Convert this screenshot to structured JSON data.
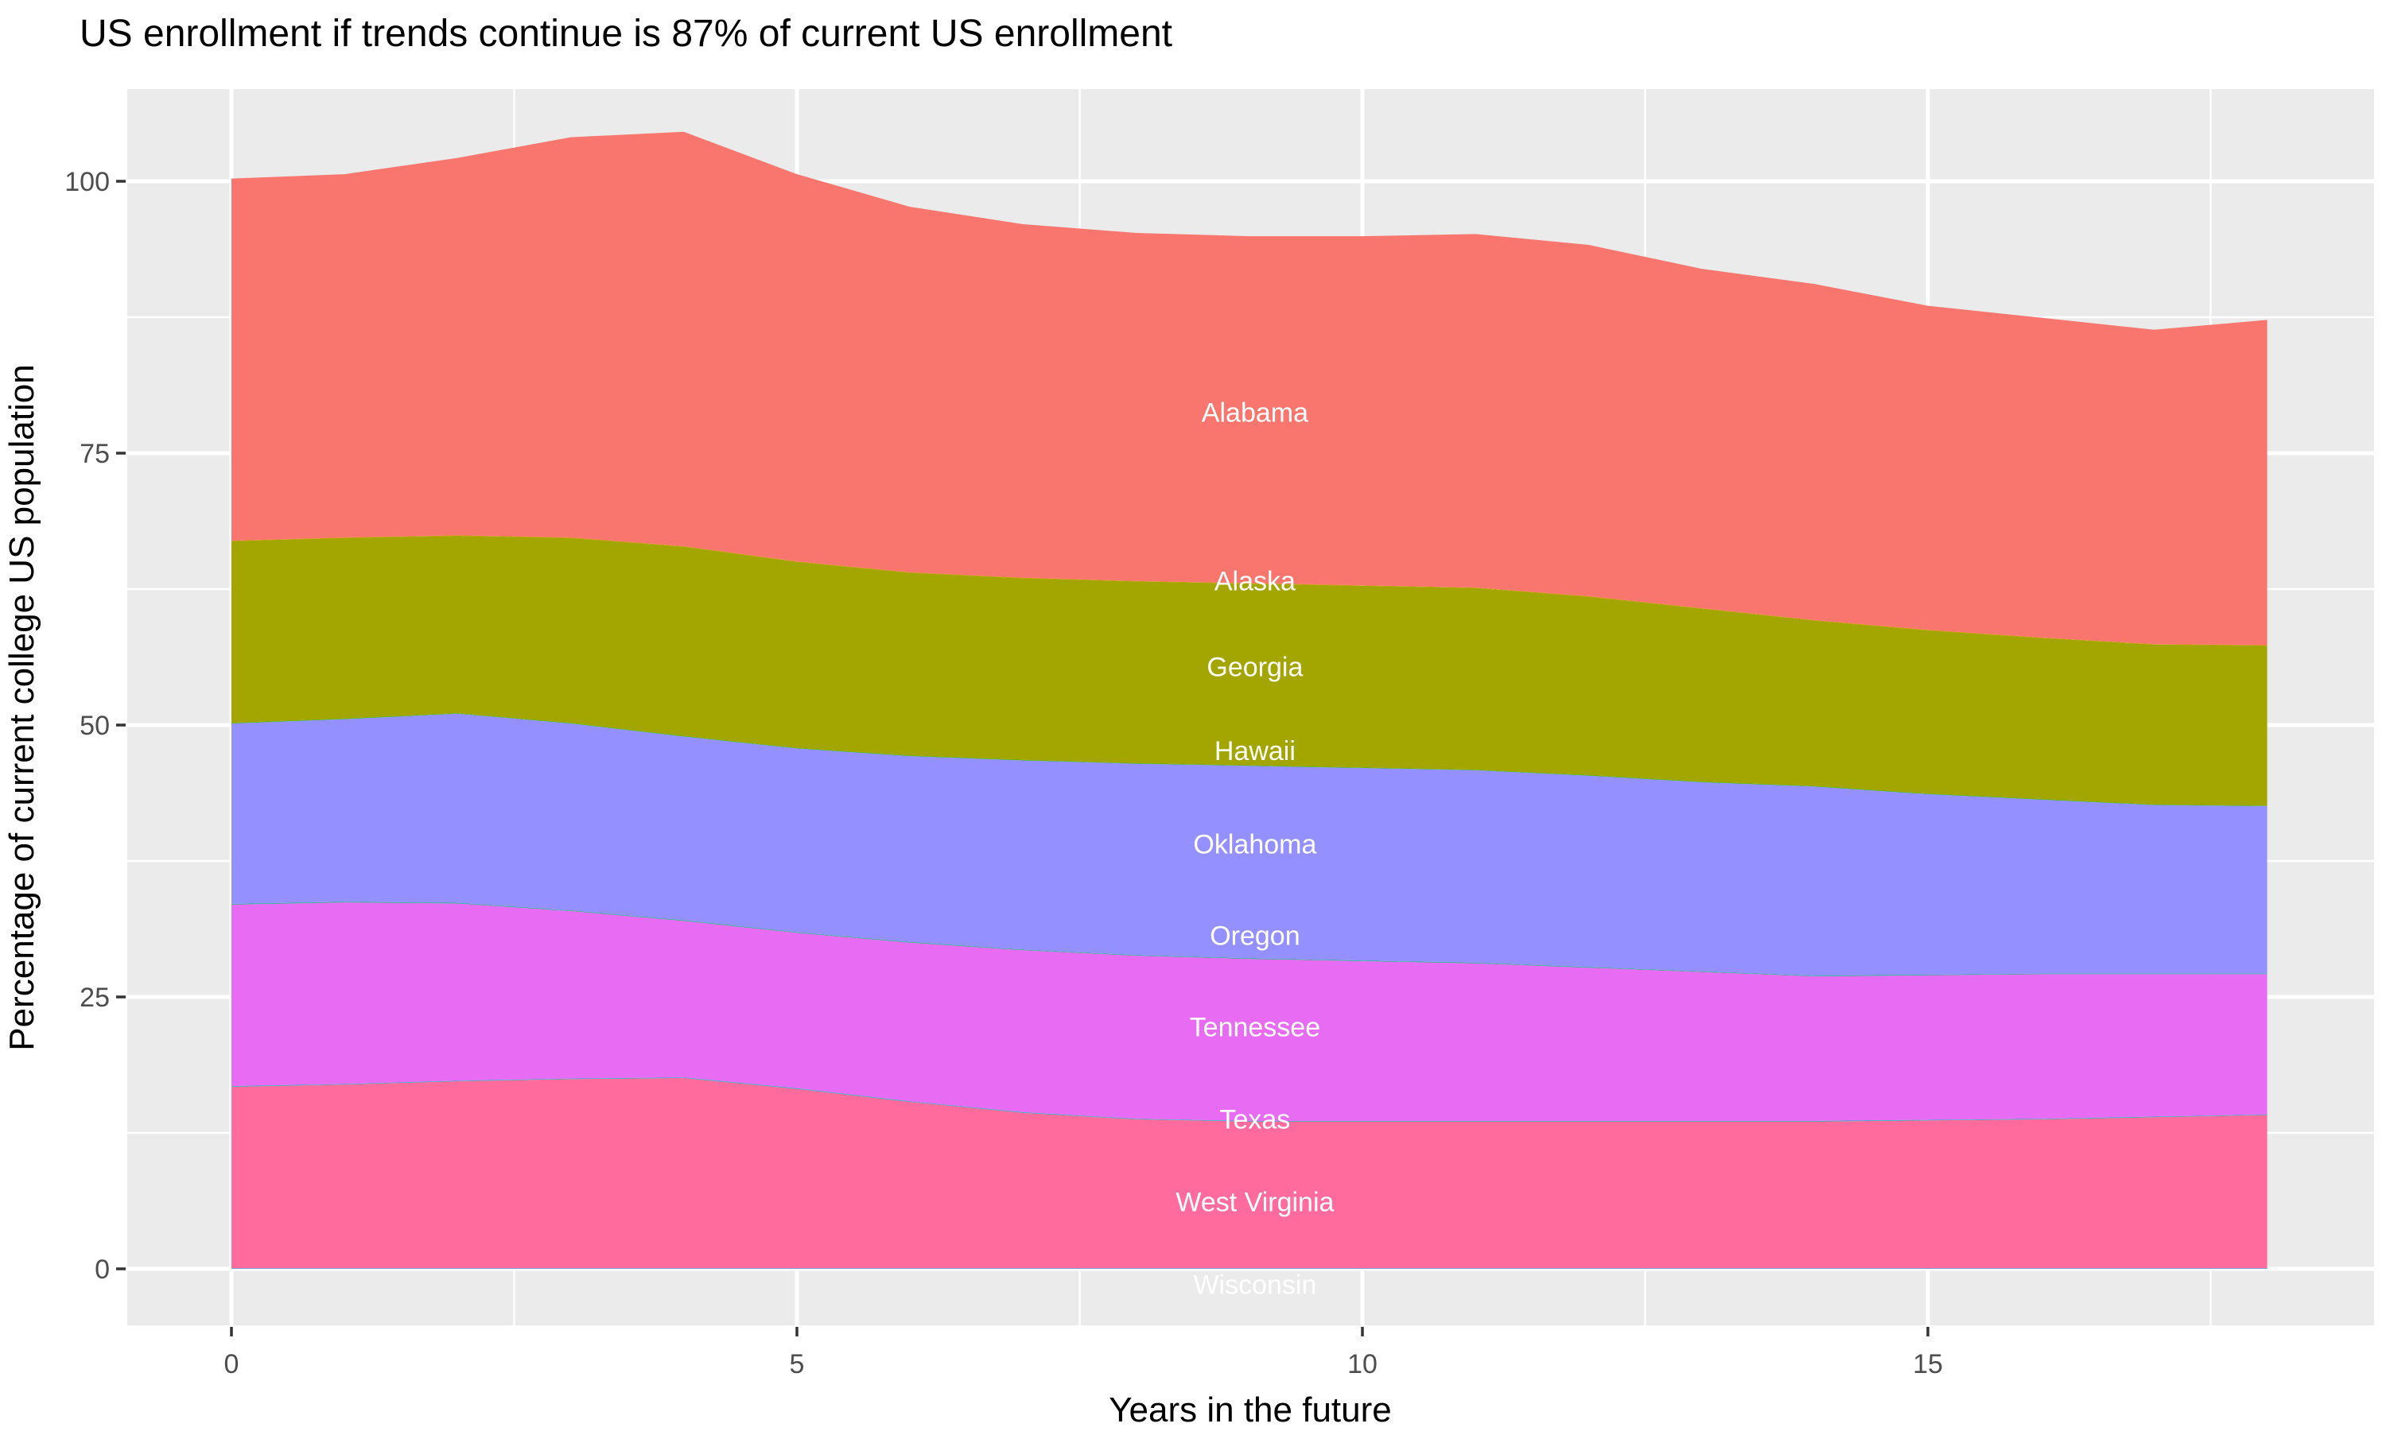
{
  "title": "US enrollment if trends continue is 87% of current US enrollment",
  "x_axis": {
    "label": "Years in the future",
    "major_ticks": [
      0,
      5,
      10,
      15
    ],
    "minor_gridlines": [
      2.5,
      7.5,
      12.5,
      17.5
    ]
  },
  "y_axis": {
    "label": "Percentage of current college US population",
    "major_ticks": [
      0,
      25,
      50,
      75,
      100
    ],
    "minor_gridlines": [
      12.5,
      37.5,
      62.5,
      87.5
    ]
  },
  "colors": {
    "panel_background": "#EBEBEB",
    "gridline": "#FFFFFF",
    "tick_mark": "#333333",
    "tick_label": "#4D4D4D",
    "title_text": "#000000",
    "state_label_text": "#FFFFFF"
  },
  "chart_data": {
    "type": "area",
    "stacked": true,
    "title": "US enrollment if trends continue is 87% of current US enrollment",
    "xlabel": "Years in the future",
    "ylabel": "Percentage of current college US population",
    "xlim": [
      -0.92,
      18.94
    ],
    "ylim": [
      -5.2,
      108.5
    ],
    "grid": true,
    "legend": "none (labels drawn inside bands)",
    "label_x": 9.05,
    "x": [
      0,
      1,
      2,
      3,
      4,
      5,
      6,
      7,
      8,
      9,
      10,
      11,
      12,
      13,
      14,
      15,
      16,
      17,
      18
    ],
    "total_at_year0": 100.0,
    "total_at_end": 87.0,
    "series": [
      {
        "name": "Wisconsin",
        "color": "#00B0F6",
        "label_y": -1.5,
        "values": [
          0.05,
          0.05,
          0.05,
          0.05,
          0.05,
          0.05,
          0.05,
          0.05,
          0.05,
          0.05,
          0.05,
          0.05,
          0.05,
          0.05,
          0.05,
          0.05,
          0.05,
          0.05,
          0.05
        ]
      },
      {
        "name": "West Virginia",
        "color": "#FF6B9C",
        "label_y": 6.1,
        "values": [
          16.7,
          16.9,
          17.2,
          17.4,
          17.5,
          16.5,
          15.3,
          14.3,
          13.7,
          13.5,
          13.5,
          13.5,
          13.5,
          13.5,
          13.5,
          13.6,
          13.7,
          13.9,
          14.1
        ]
      },
      {
        "name": "Texas",
        "color": "#00BFC4",
        "label_y": 13.7,
        "values": [
          0.05,
          0.05,
          0.05,
          0.05,
          0.05,
          0.05,
          0.05,
          0.05,
          0.05,
          0.05,
          0.05,
          0.05,
          0.05,
          0.05,
          0.05,
          0.05,
          0.05,
          0.05,
          0.05
        ]
      },
      {
        "name": "Tennessee",
        "color": "#E76BF3",
        "label_y": 22.2,
        "values": [
          16.7,
          16.7,
          16.3,
          15.4,
          14.4,
          14.3,
          14.6,
          14.9,
          15.0,
          14.9,
          14.7,
          14.5,
          14.1,
          13.7,
          13.3,
          13.3,
          13.3,
          13.1,
          12.9
        ]
      },
      {
        "name": "Oregon",
        "color": "#00BF7D",
        "label_y": 30.6,
        "values": [
          0.05,
          0.05,
          0.05,
          0.05,
          0.05,
          0.05,
          0.05,
          0.05,
          0.05,
          0.05,
          0.05,
          0.05,
          0.05,
          0.05,
          0.05,
          0.05,
          0.05,
          0.05,
          0.05
        ]
      },
      {
        "name": "Oklahoma",
        "color": "#9590FF",
        "label_y": 39.0,
        "values": [
          16.6,
          16.8,
          17.4,
          17.2,
          16.9,
          16.9,
          17.1,
          17.4,
          17.6,
          17.7,
          17.7,
          17.7,
          17.6,
          17.4,
          17.4,
          16.6,
          16.0,
          15.5,
          15.4
        ]
      },
      {
        "name": "Hawaii",
        "color": "#39B600",
        "label_y": 47.6,
        "values": [
          0.05,
          0.05,
          0.05,
          0.05,
          0.05,
          0.05,
          0.05,
          0.05,
          0.05,
          0.05,
          0.05,
          0.05,
          0.05,
          0.05,
          0.05,
          0.05,
          0.05,
          0.05,
          0.05
        ]
      },
      {
        "name": "Georgia",
        "color": "#A3A500",
        "label_y": 55.3,
        "values": [
          16.7,
          16.6,
          16.3,
          17.0,
          17.4,
          17.1,
          16.8,
          16.7,
          16.7,
          16.7,
          16.7,
          16.7,
          16.4,
          15.9,
          15.2,
          15.0,
          14.8,
          14.7,
          14.7
        ]
      },
      {
        "name": "Alaska",
        "color": "#D89000",
        "label_y": 63.2,
        "values": [
          0.05,
          0.05,
          0.05,
          0.05,
          0.05,
          0.05,
          0.05,
          0.05,
          0.05,
          0.05,
          0.05,
          0.05,
          0.05,
          0.05,
          0.05,
          0.05,
          0.05,
          0.05,
          0.05
        ]
      },
      {
        "name": "Alabama",
        "color": "#F8766D",
        "label_y": 78.7,
        "values": [
          33.3,
          33.4,
          34.7,
          36.8,
          38.1,
          35.6,
          33.6,
          32.5,
          32.0,
          31.9,
          32.1,
          32.5,
          32.3,
          31.2,
          30.9,
          29.8,
          29.4,
          28.9,
          29.9
        ]
      }
    ]
  }
}
